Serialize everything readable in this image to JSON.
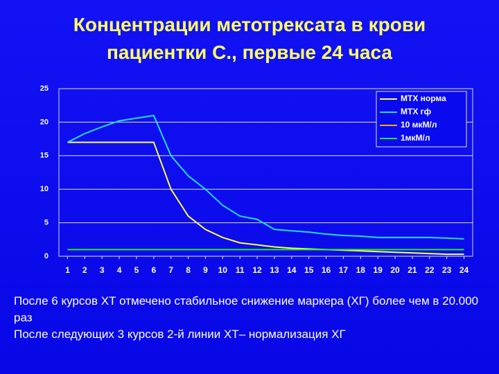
{
  "chart_data": {
    "type": "line",
    "title": "Концентрации метотрексата в крови пациентки С., первые 24 часа",
    "x": [
      1,
      2,
      3,
      4,
      5,
      6,
      7,
      8,
      9,
      10,
      11,
      12,
      13,
      14,
      15,
      16,
      17,
      18,
      19,
      20,
      21,
      22,
      23,
      24
    ],
    "xlim": [
      0.5,
      24.5
    ],
    "xticks": [
      1,
      2,
      3,
      4,
      5,
      6,
      7,
      8,
      9,
      10,
      11,
      12,
      13,
      14,
      15,
      16,
      17,
      18,
      19,
      20,
      21,
      22,
      23,
      24
    ],
    "ylim": [
      0,
      25
    ],
    "yticks": [
      0,
      5,
      10,
      15,
      20,
      25
    ],
    "grid": true,
    "legend": "top-right",
    "series": [
      {
        "name": "МТХ норма",
        "color": "#ffff4d",
        "values": [
          17,
          17,
          17,
          17,
          17,
          17,
          10,
          6,
          4,
          2.8,
          2,
          1.7,
          1.4,
          1.2,
          1.1,
          1,
          0.9,
          0.8,
          0.7,
          0.6,
          0.5,
          0.4,
          0.3,
          0.3
        ]
      },
      {
        "name": "МТХ гф",
        "color": "#22ddee",
        "values": [
          17,
          18.3,
          19.3,
          20.2,
          20.6,
          21,
          15,
          12,
          10,
          7.6,
          6,
          5.5,
          4,
          3.8,
          3.6,
          3.3,
          3.1,
          3,
          2.8,
          2.8,
          2.8,
          2.8,
          2.7,
          2.6
        ]
      },
      {
        "name": "10 мкМ/л",
        "color": "#ffaa00",
        "values": [
          null,
          null,
          null,
          null,
          null,
          null,
          null,
          null,
          null,
          null,
          null,
          null,
          null,
          null,
          null,
          null,
          null,
          null,
          null,
          null,
          null,
          null,
          null,
          null
        ]
      },
      {
        "name": "1мкМ/л",
        "color": "#22ee22",
        "values": [
          1,
          1,
          1,
          1,
          1,
          1,
          1,
          1,
          1,
          1,
          1,
          1,
          1,
          1,
          1,
          1,
          1,
          1,
          1,
          1,
          1,
          1,
          1,
          1
        ]
      }
    ],
    "notes": [
      "После 6 курсов ХТ отмечено стабильное снижение маркера (ХГ) более чем в 20.000 раз",
      "После следующих 3 курсов 2-й линии ХТ– нормализация ХГ"
    ]
  }
}
